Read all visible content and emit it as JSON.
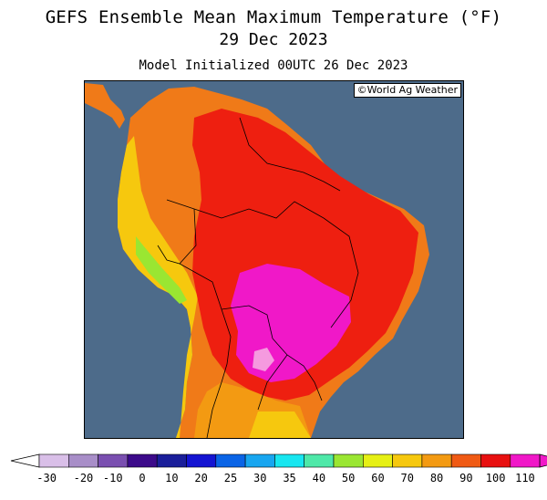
{
  "title": {
    "line1": "GEFS Ensemble Mean Maximum Temperature (°F)",
    "line2": "29 Dec 2023",
    "line3": "Model Initialized 00UTC 26 Dec 2023"
  },
  "credit": "©World Ag Weather",
  "colors": {
    "ocean": "#4d6b8a",
    "land_hot": "#ee1f10",
    "land_warm": "#f07a18",
    "land_very_hot": "#f018c8"
  },
  "colorbar": {
    "labels": [
      "-30",
      "-20",
      "-10",
      "0",
      "10",
      "20",
      "25",
      "30",
      "35",
      "40",
      "50",
      "60",
      "70",
      "80",
      "90",
      "100",
      "110"
    ],
    "colors": [
      "#d9bfe8",
      "#a88ec8",
      "#7a4fb0",
      "#3c0a8a",
      "#1a1e9a",
      "#1414d2",
      "#0a64e6",
      "#18a6f0",
      "#18e6f0",
      "#4ee8a8",
      "#9ae632",
      "#e6f014",
      "#f6c80e",
      "#f39a12",
      "#f05a14",
      "#e81010",
      "#f018c8"
    ]
  }
}
